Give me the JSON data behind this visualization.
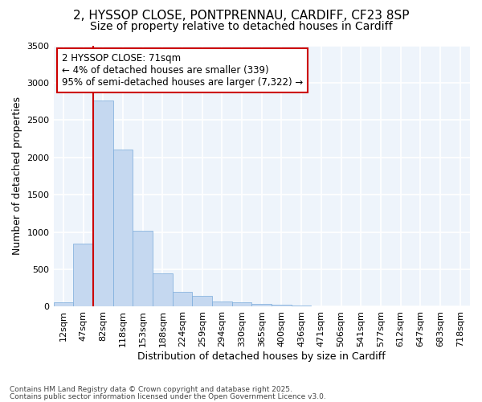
{
  "title_line1": "2, HYSSOP CLOSE, PONTPRENNAU, CARDIFF, CF23 8SP",
  "title_line2": "Size of property relative to detached houses in Cardiff",
  "xlabel": "Distribution of detached houses by size in Cardiff",
  "ylabel": "Number of detached properties",
  "bar_color": "#c5d8f0",
  "bar_edge_color": "#7aabdb",
  "categories": [
    "12sqm",
    "47sqm",
    "82sqm",
    "118sqm",
    "153sqm",
    "188sqm",
    "224sqm",
    "259sqm",
    "294sqm",
    "330sqm",
    "365sqm",
    "400sqm",
    "436sqm",
    "471sqm",
    "506sqm",
    "541sqm",
    "577sqm",
    "612sqm",
    "647sqm",
    "683sqm",
    "718sqm"
  ],
  "values": [
    55,
    840,
    2760,
    2100,
    1020,
    450,
    200,
    150,
    65,
    55,
    35,
    30,
    15,
    10,
    5,
    3,
    2,
    1,
    1,
    1,
    0
  ],
  "vline_x": 2,
  "vline_color": "#cc0000",
  "ylim": [
    0,
    3500
  ],
  "yticks": [
    0,
    500,
    1000,
    1500,
    2000,
    2500,
    3000,
    3500
  ],
  "annotation_text": "2 HYSSOP CLOSE: 71sqm\n← 4% of detached houses are smaller (339)\n95% of semi-detached houses are larger (7,322) →",
  "annotation_box_color": "#ffffff",
  "annotation_box_edge_color": "#cc0000",
  "footnote_line1": "Contains HM Land Registry data © Crown copyright and database right 2025.",
  "footnote_line2": "Contains public sector information licensed under the Open Government Licence v3.0.",
  "bg_color": "#ffffff",
  "plot_bg_color": "#eef4fb",
  "grid_color": "#ffffff",
  "title_fontsize": 11,
  "subtitle_fontsize": 10,
  "axis_label_fontsize": 9,
  "tick_fontsize": 8,
  "annotation_fontsize": 8.5,
  "footnote_fontsize": 6.5
}
